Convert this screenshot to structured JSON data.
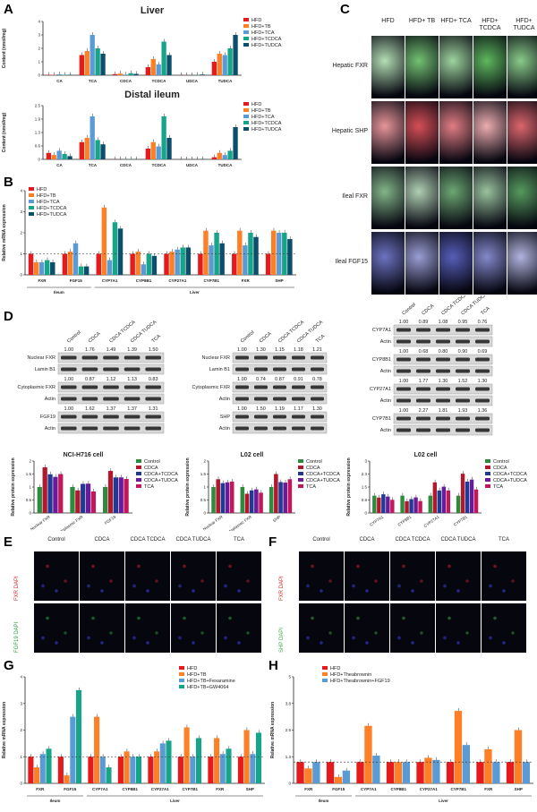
{
  "panels": {
    "A": {
      "label": "A",
      "liver_title": "Liver",
      "ileum_title": "Distal ileum",
      "ylabel": "Content (nmol/mg)",
      "categories": [
        "CA",
        "TCA",
        "CDCA",
        "TCDCA",
        "UDCA",
        "TUDCA"
      ],
      "legend": [
        "HFD",
        "HFD+TB",
        "HFD+TCA",
        "HFD+TCDCA",
        "HFD+TUDCA"
      ]
    },
    "B": {
      "label": "B",
      "ylabel": "Relative mRNA expression",
      "categories": [
        "FXR",
        "FGF15",
        "CYP7A1",
        "CYP8B1",
        "CYP27A1",
        "CYP7B1",
        "FXR",
        "SHP"
      ],
      "groups": [
        "Ileum",
        "Liver"
      ],
      "legend": [
        "HFD",
        "HFD+TB",
        "HFD+TCA",
        "HFD+TCDCA",
        "HFD+TUDCA"
      ]
    },
    "C": {
      "label": "C",
      "cols": [
        "HFD",
        "HFD+ TB",
        "HFD+ TCA",
        "HFD+ TCDCA",
        "HFD+ TUDCA"
      ],
      "rows": [
        "Hepatic FXR",
        "Hepatic SHP",
        "Ileal FXR",
        "Ileal FGF15"
      ]
    },
    "D": {
      "label": "D",
      "left": {
        "title": "NCI-H716 cell",
        "lanes": [
          "Control",
          "CDCA",
          "CDCA TCDCA",
          "CDCA TUDCA",
          "TCA"
        ],
        "bands": [
          {
            "name": "Nuclear FXR",
            "values": [
              "1.00",
              "1.76",
              "1.49",
              "1.39",
              "1.50"
            ]
          },
          {
            "name": "Lamin B1",
            "values": []
          },
          {
            "name": "Cytoplasmic FXR",
            "values": [
              "1.00",
              "0.87",
              "1.12",
              "1.13",
              "0.83"
            ]
          },
          {
            "name": "Actin",
            "values": []
          },
          {
            "name": "FGF19",
            "values": [
              "1.00",
              "1.62",
              "1.37",
              "1.37",
              "1.31"
            ]
          },
          {
            "name": "Actin",
            "values": []
          }
        ],
        "xcats": [
          "Nuclear FXR",
          "Cytoplasmic FXR",
          "FGF19"
        ]
      },
      "mid": {
        "title": "L02 cell",
        "lanes": [
          "Control",
          "CDCA",
          "CDCA TCDCA",
          "CDCA TUDCA",
          "TCA"
        ],
        "bands": [
          {
            "name": "Nuclear FXR",
            "values": [
              "1.00",
              "1.30",
              "1.15",
              "1.18",
              "1.21"
            ]
          },
          {
            "name": "Lamin B1",
            "values": []
          },
          {
            "name": "Cytoplasmic FXR",
            "values": [
              "1.00",
              "0.74",
              "0.87",
              "0.91",
              "0.78"
            ]
          },
          {
            "name": "Actin",
            "values": []
          },
          {
            "name": "SHP",
            "values": [
              "1.00",
              "1.50",
              "1.19",
              "1.17",
              "1.30"
            ]
          },
          {
            "name": "Actin",
            "values": []
          }
        ],
        "xcats": [
          "Nuclear FXR",
          "Cytoplasmic FXR",
          "SHP"
        ]
      },
      "right": {
        "title": "L02 cell",
        "lanes": [
          "Control",
          "CDCA",
          "CDCA TCDCA",
          "CDCA TUDCA",
          "TCA"
        ],
        "bands": [
          {
            "name": "CYP7A1",
            "values": [
              "1.00",
              "0.89",
              "1.08",
              "0.95",
              "0.76"
            ]
          },
          {
            "name": "Actin",
            "values": []
          },
          {
            "name": "CYP8B1",
            "values": [
              "1.00",
              "0.68",
              "0.80",
              "0.90",
              "0.69"
            ]
          },
          {
            "name": "Actin",
            "values": []
          },
          {
            "name": "CYP27A1",
            "values": [
              "1.00",
              "1.77",
              "1.30",
              "1.52",
              "1.30"
            ]
          },
          {
            "name": "Actin",
            "values": []
          },
          {
            "name": "CYP7B1",
            "values": [
              "1.00",
              "2.27",
              "1.81",
              "1.93",
              "1.36"
            ]
          },
          {
            "name": "Actin",
            "values": []
          }
        ],
        "xcats": [
          "CYP7A1",
          "CYP8B1",
          "CYP27A1",
          "CYP7B1"
        ]
      },
      "ylabel": "Relative protein expression",
      "legend": [
        "Control",
        "CDCA",
        "CDCA+TCDCA",
        "CDCA+TUDCA",
        "TCA"
      ]
    },
    "E": {
      "label": "E",
      "cols": [
        "Control",
        "CDCA",
        "CDCA TCDCA",
        "CDCA TUDCA",
        "TCA"
      ],
      "rows": [
        "FXR DAPI",
        "FGF19 DAPI"
      ]
    },
    "F": {
      "label": "F",
      "cols": [
        "Control",
        "CDCA",
        "CDCA TCDCA",
        "CDCA TUDCA",
        "TCA"
      ],
      "rows": [
        "FXR DAPI",
        "SHP DAPI"
      ]
    },
    "G": {
      "label": "G",
      "ylabel": "Relative mRNA expression",
      "categories": [
        "FXR",
        "FGF15",
        "CYP7A1",
        "CYP8B1",
        "CYP27A1",
        "CYP7B1",
        "FXR",
        "SHP"
      ],
      "groups": [
        "Ileum",
        "Liver"
      ],
      "legend": [
        "HFD",
        "HFD+TB",
        "HFD+TB+Fexaramine",
        "HFD+TB+GW4064"
      ]
    },
    "H": {
      "label": "H",
      "ylabel": "Relative mRNA expression",
      "categories": [
        "FXR",
        "FGF15",
        "CYP7A1",
        "CYP8B1",
        "CYP27A1",
        "CYP7B1",
        "FXR",
        "SHP"
      ],
      "groups": [
        "Ileum",
        "Liver"
      ],
      "legend": [
        "HFD",
        "HFD+Theabrownin",
        "HFD+Theabrownin+FGF19"
      ]
    }
  },
  "colors": {
    "five": [
      "#e41a1c",
      "#ff7f27",
      "#5b9bd5",
      "#17a589",
      "#0b4f6c"
    ],
    "D": [
      "#2e8b3d",
      "#b2182b",
      "#1f3a93",
      "#6a1b9a",
      "#c2185b"
    ],
    "G": [
      "#e41a1c",
      "#ff7f27",
      "#5b9bd5",
      "#17a589"
    ],
    "H": [
      "#e41a1c",
      "#ff7f27",
      "#5b9bd5"
    ]
  },
  "chart_data": [
    {
      "id": "A-liver",
      "type": "bar",
      "title": "Liver",
      "ylabel": "Content (nmol/mg)",
      "categories": [
        "CA",
        "TCA",
        "CDCA",
        "TCDCA",
        "UDCA",
        "TUDCA"
      ],
      "series": [
        {
          "name": "HFD",
          "values": [
            0.03,
            1.5,
            0.08,
            0.6,
            0.01,
            1.0
          ]
        },
        {
          "name": "HFD+TB",
          "values": [
            0.02,
            1.8,
            0.12,
            1.2,
            0.01,
            1.6
          ]
        },
        {
          "name": "HFD+TCA",
          "values": [
            0.07,
            3.0,
            0.05,
            0.8,
            0.01,
            1.5
          ]
        },
        {
          "name": "HFD+TCDCA",
          "values": [
            0.03,
            2.0,
            0.15,
            2.5,
            0.02,
            2.0
          ]
        },
        {
          "name": "HFD+TUDCA",
          "values": [
            0.02,
            1.6,
            0.1,
            1.5,
            0.05,
            3.0
          ]
        }
      ],
      "ylim": [
        0,
        4
      ]
    },
    {
      "id": "A-ileum",
      "type": "bar",
      "title": "Distal ileum",
      "ylabel": "Content (nmol/mg)",
      "categories": [
        "CA",
        "TCA",
        "CDCA",
        "TCDCA",
        "UDCA",
        "TUDCA"
      ],
      "series": [
        {
          "name": "HFD",
          "values": [
            0.3,
            0.8,
            0.003,
            0.5,
            0.001,
            0.1
          ]
        },
        {
          "name": "HFD+TB",
          "values": [
            0.2,
            1.0,
            0.002,
            0.8,
            0.001,
            0.3
          ]
        },
        {
          "name": "HFD+TCA",
          "values": [
            0.4,
            2.0,
            0.004,
            0.6,
            0.001,
            0.2
          ]
        },
        {
          "name": "HFD+TCDCA",
          "values": [
            0.25,
            0.9,
            0.01,
            2.0,
            0.002,
            0.4
          ]
        },
        {
          "name": "HFD+TUDCA",
          "values": [
            0.15,
            0.7,
            0.005,
            1.0,
            0.01,
            1.5
          ]
        }
      ],
      "ylim": [
        0,
        2.5
      ]
    },
    {
      "id": "B",
      "type": "bar",
      "ylabel": "Relative mRNA expression",
      "categories": [
        "FXR",
        "FGF15",
        "CYP7A1",
        "CYP8B1",
        "CYP27A1",
        "CYP7B1",
        "FXR",
        "SHP"
      ],
      "series": [
        {
          "name": "HFD",
          "values": [
            1.0,
            1.0,
            1.0,
            1.0,
            1.0,
            1.0,
            1.0,
            1.0
          ]
        },
        {
          "name": "HFD+TB",
          "values": [
            0.6,
            1.1,
            3.2,
            1.1,
            1.1,
            2.1,
            2.1,
            2.1
          ]
        },
        {
          "name": "HFD+TCA",
          "values": [
            0.6,
            1.5,
            0.7,
            0.5,
            1.2,
            1.4,
            1.4,
            2.0
          ]
        },
        {
          "name": "HFD+TCDCA",
          "values": [
            0.7,
            0.4,
            2.5,
            1.0,
            1.3,
            2.0,
            2.0,
            2.0
          ]
        },
        {
          "name": "HFD+TUDCA",
          "values": [
            0.6,
            0.4,
            2.2,
            0.9,
            1.3,
            1.5,
            1.8,
            1.7
          ]
        }
      ],
      "ylim": [
        0,
        4
      ]
    },
    {
      "id": "D-left",
      "type": "bar",
      "title": "NCI-H716 cell",
      "ylabel": "Relative protein expression",
      "categories": [
        "Nuclear FXR",
        "Cytoplasmic FXR",
        "FGF19"
      ],
      "series": [
        {
          "name": "Control",
          "values": [
            1.0,
            1.0,
            1.0
          ]
        },
        {
          "name": "CDCA",
          "values": [
            1.76,
            0.87,
            1.62
          ]
        },
        {
          "name": "CDCA+TCDCA",
          "values": [
            1.49,
            1.12,
            1.37
          ]
        },
        {
          "name": "CDCA+TUDCA",
          "values": [
            1.39,
            1.13,
            1.37
          ]
        },
        {
          "name": "TCA",
          "values": [
            1.5,
            0.83,
            1.31
          ]
        }
      ],
      "ylim": [
        0,
        2.0
      ]
    },
    {
      "id": "D-mid",
      "type": "bar",
      "title": "L02 cell",
      "ylabel": "Relative protein expression",
      "categories": [
        "Nuclear FXR",
        "Cytoplasmic FXR",
        "SHP"
      ],
      "series": [
        {
          "name": "Control",
          "values": [
            1.0,
            1.0,
            1.0
          ]
        },
        {
          "name": "CDCA",
          "values": [
            1.3,
            0.74,
            1.5
          ]
        },
        {
          "name": "CDCA+TCDCA",
          "values": [
            1.15,
            0.87,
            1.19
          ]
        },
        {
          "name": "CDCA+TUDCA",
          "values": [
            1.18,
            0.91,
            1.17
          ]
        },
        {
          "name": "TCA",
          "values": [
            1.21,
            0.78,
            1.3
          ]
        }
      ],
      "ylim": [
        0,
        2.0
      ]
    },
    {
      "id": "D-right",
      "type": "bar",
      "title": "L02 cell",
      "ylabel": "Relative protein expression",
      "categories": [
        "CYP7A1",
        "CYP8B1",
        "CYP27A1",
        "CYP7B1"
      ],
      "series": [
        {
          "name": "Control",
          "values": [
            1.0,
            1.0,
            1.0,
            1.0
          ]
        },
        {
          "name": "CDCA",
          "values": [
            0.89,
            0.68,
            1.77,
            2.27
          ]
        },
        {
          "name": "CDCA+TCDCA",
          "values": [
            1.08,
            0.8,
            1.3,
            1.81
          ]
        },
        {
          "name": "CDCA+TUDCA",
          "values": [
            0.95,
            0.9,
            1.52,
            1.93
          ]
        },
        {
          "name": "TCA",
          "values": [
            0.76,
            0.69,
            1.3,
            1.36
          ]
        }
      ],
      "ylim": [
        0,
        3.0
      ]
    },
    {
      "id": "G",
      "type": "bar",
      "ylabel": "Relative mRNA expression",
      "categories": [
        "FXR",
        "FGF15",
        "CYP7A1",
        "CYP8B1",
        "CYP27A1",
        "CYP7B1",
        "FXR",
        "SHP"
      ],
      "series": [
        {
          "name": "HFD",
          "values": [
            1.0,
            1.0,
            1.0,
            1.0,
            1.0,
            1.0,
            1.0,
            1.0
          ]
        },
        {
          "name": "HFD+TB",
          "values": [
            0.6,
            0.3,
            2.5,
            1.2,
            1.2,
            2.1,
            1.7,
            2.0
          ]
        },
        {
          "name": "HFD+TB+Fexaramine",
          "values": [
            1.1,
            2.5,
            1.0,
            1.0,
            1.5,
            1.0,
            1.1,
            1.1
          ]
        },
        {
          "name": "HFD+TB+GW4064",
          "values": [
            1.3,
            3.5,
            0.6,
            1.0,
            1.6,
            1.7,
            1.3,
            1.9
          ]
        }
      ],
      "ylim": [
        0,
        4
      ]
    },
    {
      "id": "H",
      "type": "bar",
      "ylabel": "Relative mRNA expression",
      "categories": [
        "FXR",
        "FGF15",
        "CYP7A1",
        "CYP8B1",
        "CYP27A1",
        "CYP7B1",
        "FXR",
        "SHP"
      ],
      "series": [
        {
          "name": "HFD",
          "values": [
            1.0,
            1.0,
            1.0,
            1.0,
            1.0,
            1.0,
            1.0,
            1.0
          ]
        },
        {
          "name": "HFD+Theabrownin",
          "values": [
            0.7,
            0.3,
            2.7,
            1.0,
            1.2,
            3.4,
            1.6,
            2.5
          ]
        },
        {
          "name": "HFD+Theabrownin+FGF19",
          "values": [
            1.0,
            0.6,
            1.3,
            1.0,
            1.1,
            1.8,
            1.0,
            1.0
          ]
        }
      ],
      "ylim": [
        0,
        5
      ]
    }
  ]
}
